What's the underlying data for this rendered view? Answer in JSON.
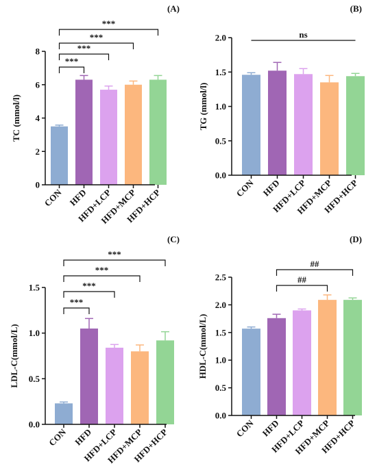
{
  "colors": {
    "CON": "#8eacd2",
    "HFD": "#a066b4",
    "HFD+LCP": "#dca2ee",
    "HFD+MCP": "#fcb77e",
    "HFD+HCP": "#93d595",
    "axis": "#111111"
  },
  "chart_data": [
    {
      "type": "bar",
      "panel_label": "(A)",
      "ylabel": "TC (mmol/l)",
      "categories": [
        "CON",
        "HFD",
        "HFD+LCP",
        "HFD+MCP",
        "HFD+HCP"
      ],
      "values": [
        3.5,
        6.3,
        5.7,
        6.0,
        6.3
      ],
      "errors": [
        0.08,
        0.25,
        0.22,
        0.22,
        0.25
      ],
      "ylim": [
        0,
        8
      ],
      "yticks": [
        "0",
        "2",
        "4",
        "6",
        "8"
      ],
      "grid": false,
      "significance": [
        {
          "from": "CON",
          "to": "HFD",
          "label": "***"
        },
        {
          "from": "CON",
          "to": "HFD+LCP",
          "label": "***"
        },
        {
          "from": "CON",
          "to": "HFD+MCP",
          "label": "***"
        },
        {
          "from": "CON",
          "to": "HFD+HCP",
          "label": "***"
        }
      ]
    },
    {
      "type": "bar",
      "panel_label": "(B)",
      "ylabel": "TG (mmol/l)",
      "categories": [
        "CON",
        "HFD",
        "HFD+LCP",
        "HFD+MCP",
        "HFD+HCP"
      ],
      "values": [
        1.46,
        1.52,
        1.47,
        1.35,
        1.44
      ],
      "errors": [
        0.03,
        0.12,
        0.08,
        0.1,
        0.04
      ],
      "ylim": [
        0,
        2.0
      ],
      "yticks": [
        "0.0",
        "0.5",
        "1.0",
        "1.5",
        "2.0"
      ],
      "grid": false,
      "significance": [
        {
          "from": "CON",
          "to": "HFD+HCP",
          "label": "ns",
          "line_only": true
        }
      ]
    },
    {
      "type": "bar",
      "panel_label": "(C)",
      "ylabel": "LDL-C(mmol/L)",
      "categories": [
        "CON",
        "HFD",
        "HFD+LCP",
        "HFD+MCP",
        "HFD+HCP"
      ],
      "values": [
        0.23,
        1.05,
        0.84,
        0.8,
        0.92
      ],
      "errors": [
        0.015,
        0.11,
        0.035,
        0.07,
        0.095
      ],
      "ylim": [
        0,
        1.5
      ],
      "yticks": [
        "0.0",
        "0.5",
        "1.0",
        "1.5"
      ],
      "grid": false,
      "significance": [
        {
          "from": "CON",
          "to": "HFD",
          "label": "***"
        },
        {
          "from": "CON",
          "to": "HFD+LCP",
          "label": "***"
        },
        {
          "from": "CON",
          "to": "HFD+MCP",
          "label": "***"
        },
        {
          "from": "CON",
          "to": "HFD+HCP",
          "label": "***"
        }
      ]
    },
    {
      "type": "bar",
      "panel_label": "(D)",
      "ylabel": "HDL-C(mmol/L)",
      "categories": [
        "CON",
        "HFD",
        "HFD+LCP",
        "HFD+MCP",
        "HFD+HCP"
      ],
      "values": [
        1.57,
        1.76,
        1.9,
        2.09,
        2.09
      ],
      "errors": [
        0.03,
        0.07,
        0.025,
        0.09,
        0.035
      ],
      "ylim": [
        0,
        2.5
      ],
      "yticks": [
        "0.0",
        "0.5",
        "1.0",
        "1.5",
        "2.0",
        "2.5"
      ],
      "grid": false,
      "significance": [
        {
          "from": "HFD",
          "to": "HFD+MCP",
          "label": "##"
        },
        {
          "from": "HFD",
          "to": "HFD+HCP",
          "label": "##"
        }
      ]
    }
  ]
}
